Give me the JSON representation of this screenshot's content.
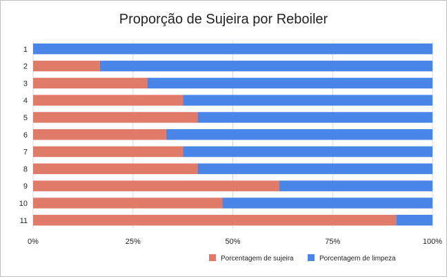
{
  "chart_data": {
    "type": "bar",
    "stacked": "percent",
    "orientation": "horizontal",
    "title": "Proporção de Sujeira por Reboiler",
    "categories": [
      "1",
      "2",
      "3",
      "4",
      "5",
      "6",
      "7",
      "8",
      "9",
      "10",
      "11"
    ],
    "series": [
      {
        "name": "Porcentagem de sujeira",
        "color": "#e07b6a",
        "values": [
          0,
          16.7,
          28.6,
          37.5,
          41.2,
          33.3,
          37.5,
          41.2,
          61.6,
          47.4,
          90.9
        ]
      },
      {
        "name": "Porcentagem de limpeza",
        "color": "#4a86e8",
        "values": [
          100,
          83.3,
          71.4,
          62.5,
          58.8,
          66.7,
          62.5,
          58.8,
          38.4,
          52.6,
          9.1
        ]
      }
    ],
    "x_ticks": [
      "0%",
      "25%",
      "50%",
      "75%",
      "100%"
    ],
    "xlim": [
      0,
      100
    ],
    "grid": true,
    "legend_position": "bottom"
  }
}
